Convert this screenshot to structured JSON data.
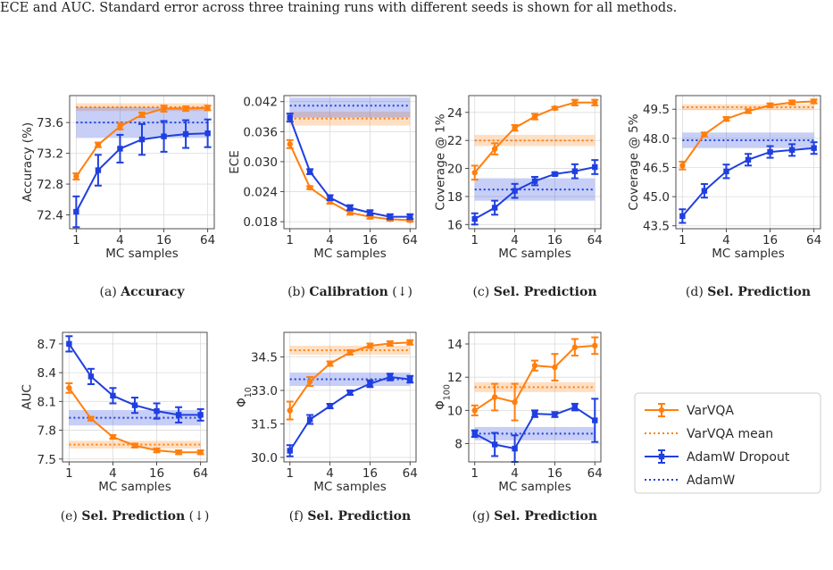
{
  "intro_text": "ECE and AUC. Standard error across three training runs with different seeds is shown for all methods.",
  "colors": {
    "varvqa": "#ff7f0e",
    "adamw": "#1f3fe0"
  },
  "legend": {
    "entries": [
      {
        "label": "VarVQA",
        "style": "errorbar",
        "color": "#ff7f0e",
        "marker": "circle"
      },
      {
        "label": "VarVQA mean",
        "style": "dotted",
        "color": "#ff7f0e"
      },
      {
        "label": "AdamW Dropout",
        "style": "errorbar",
        "color": "#1f3fe0",
        "marker": "square"
      },
      {
        "label": "AdamW",
        "style": "dotted",
        "color": "#1f3fe0"
      }
    ]
  },
  "chart_data": [
    {
      "type": "line",
      "x_scale": "log2",
      "caption": {
        "prefix": "(a)",
        "bold": "Accuracy",
        "suffix": ""
      },
      "xlabel": "MC samples",
      "ylabel": "Accuracy (%)",
      "ylabel_sub": "",
      "xticks": [
        1,
        4,
        16,
        64
      ],
      "xtick_labels": [
        "1",
        "4",
        "16",
        "64"
      ],
      "yticks": [
        72.4,
        72.8,
        73.2,
        73.6
      ],
      "ytick_labels": [
        "72.4",
        "72.8",
        "73.2",
        "73.6"
      ],
      "ylim": [
        72.22,
        73.95
      ],
      "x": [
        1,
        2,
        4,
        8,
        16,
        32,
        64
      ],
      "series": [
        {
          "name": "VarVQA",
          "values": [
            72.9,
            73.31,
            73.55,
            73.7,
            73.78,
            73.78,
            73.79
          ],
          "errors": [
            0.04,
            0.03,
            0.04,
            0.03,
            0.04,
            0.03,
            0.03
          ]
        },
        {
          "name": "AdamW Dropout",
          "values": [
            72.44,
            72.98,
            73.26,
            73.38,
            73.42,
            73.45,
            73.46
          ],
          "errors": [
            0.2,
            0.2,
            0.18,
            0.2,
            0.2,
            0.18,
            0.18
          ]
        }
      ],
      "means": [
        {
          "name": "VarVQA mean",
          "value": 73.8,
          "band": [
            73.75,
            73.85
          ]
        },
        {
          "name": "AdamW",
          "value": 73.6,
          "band": [
            73.4,
            73.8
          ]
        }
      ]
    },
    {
      "type": "line",
      "x_scale": "log2",
      "caption": {
        "prefix": "(b)",
        "bold": "Calibration",
        "suffix": " (↓)"
      },
      "xlabel": "MC samples",
      "ylabel": "ECE",
      "ylabel_sub": "",
      "xticks": [
        1,
        4,
        16,
        64
      ],
      "xtick_labels": [
        "1",
        "4",
        "16",
        "64"
      ],
      "yticks": [
        0.018,
        0.024,
        0.03,
        0.036,
        0.042
      ],
      "ytick_labels": [
        "0.018",
        "0.024",
        "0.030",
        "0.036",
        "0.042"
      ],
      "ylim": [
        0.0166,
        0.0432
      ],
      "x": [
        1,
        2,
        4,
        8,
        16,
        32,
        64
      ],
      "series": [
        {
          "name": "VarVQA",
          "values": [
            0.0335,
            0.0248,
            0.022,
            0.0198,
            0.019,
            0.0185,
            0.0183
          ],
          "errors": [
            0.0008,
            0.0003,
            0.0004,
            0.0004,
            0.0004,
            0.0003,
            0.0003
          ]
        },
        {
          "name": "AdamW Dropout",
          "values": [
            0.0388,
            0.028,
            0.0228,
            0.0208,
            0.0198,
            0.019,
            0.019
          ],
          "errors": [
            0.0008,
            0.0005,
            0.0005,
            0.0005,
            0.0005,
            0.0005,
            0.0005
          ]
        }
      ],
      "means": [
        {
          "name": "VarVQA mean",
          "value": 0.0386,
          "band": [
            0.0372,
            0.04
          ]
        },
        {
          "name": "AdamW",
          "value": 0.0412,
          "band": [
            0.0388,
            0.0428
          ]
        }
      ]
    },
    {
      "type": "line",
      "x_scale": "log2",
      "caption": {
        "prefix": "(c)",
        "bold": "Sel. Prediction",
        "suffix": ""
      },
      "xlabel": "MC samples",
      "ylabel": "Coverage @ 1%",
      "ylabel_sub": "",
      "xticks": [
        1,
        4,
        16,
        64
      ],
      "xtick_labels": [
        "1",
        "4",
        "16",
        "64"
      ],
      "yticks": [
        16,
        18,
        20,
        22,
        24
      ],
      "ytick_labels": [
        "16",
        "18",
        "20",
        "22",
        "24"
      ],
      "ylim": [
        15.7,
        25.2
      ],
      "x": [
        1,
        2,
        4,
        8,
        16,
        32,
        64
      ],
      "series": [
        {
          "name": "VarVQA",
          "values": [
            19.7,
            21.4,
            22.9,
            23.7,
            24.3,
            24.7,
            24.7
          ],
          "errors": [
            0.5,
            0.4,
            0.2,
            0.2,
            0.1,
            0.2,
            0.2
          ]
        },
        {
          "name": "AdamW Dropout",
          "values": [
            16.4,
            17.2,
            18.4,
            19.1,
            19.6,
            19.8,
            20.1
          ],
          "errors": [
            0.4,
            0.5,
            0.5,
            0.3,
            0.1,
            0.5,
            0.5
          ]
        }
      ],
      "means": [
        {
          "name": "VarVQA mean",
          "value": 22.0,
          "band": [
            21.6,
            22.4
          ]
        },
        {
          "name": "AdamW",
          "value": 18.5,
          "band": [
            17.7,
            19.3
          ]
        }
      ]
    },
    {
      "type": "line",
      "x_scale": "log2",
      "caption": {
        "prefix": "(d)",
        "bold": "Sel. Prediction",
        "suffix": ""
      },
      "xlabel": "MC samples",
      "ylabel": "Coverage @ 5%",
      "ylabel_sub": "",
      "xticks": [
        1,
        4,
        16,
        64
      ],
      "xtick_labels": [
        "1",
        "4",
        "16",
        "64"
      ],
      "yticks": [
        43.5,
        45,
        46.5,
        48,
        49.5
      ],
      "ytick_labels": [
        "43.5",
        "45.0",
        "46.5",
        "48.0",
        "49.5"
      ],
      "ylim": [
        43.35,
        50.2
      ],
      "x": [
        1,
        2,
        4,
        8,
        16,
        32,
        64
      ],
      "series": [
        {
          "name": "VarVQA",
          "values": [
            46.6,
            48.2,
            49.0,
            49.4,
            49.7,
            49.85,
            49.9
          ],
          "errors": [
            0.2,
            0.1,
            0.1,
            0.1,
            0.1,
            0.1,
            0.1
          ]
        },
        {
          "name": "AdamW Dropout",
          "values": [
            44.0,
            45.3,
            46.3,
            46.9,
            47.3,
            47.4,
            47.5
          ],
          "errors": [
            0.35,
            0.35,
            0.35,
            0.3,
            0.3,
            0.3,
            0.3
          ]
        }
      ],
      "means": [
        {
          "name": "VarVQA mean",
          "value": 49.6,
          "band": [
            49.45,
            49.75
          ]
        },
        {
          "name": "AdamW",
          "value": 47.9,
          "band": [
            47.5,
            48.3
          ]
        }
      ]
    },
    {
      "type": "line",
      "x_scale": "log2",
      "caption": {
        "prefix": "(e)",
        "bold": "Sel. Prediction",
        "suffix": " (↓)"
      },
      "xlabel": "MC samples",
      "ylabel": "AUC",
      "ylabel_sub": "",
      "xticks": [
        1,
        4,
        16,
        64
      ],
      "xtick_labels": [
        "1",
        "4",
        "16",
        "64"
      ],
      "yticks": [
        7.5,
        7.8,
        8.1,
        8.4,
        8.7
      ],
      "ytick_labels": [
        "7.5",
        "7.8",
        "8.1",
        "8.4",
        "8.7"
      ],
      "ylim": [
        7.47,
        8.82
      ],
      "x": [
        1,
        2,
        4,
        8,
        16,
        32,
        64
      ],
      "series": [
        {
          "name": "VarVQA",
          "values": [
            8.24,
            7.92,
            7.73,
            7.64,
            7.59,
            7.57,
            7.57
          ],
          "errors": [
            0.05,
            0.02,
            0.02,
            0.02,
            0.02,
            0.02,
            0.02
          ]
        },
        {
          "name": "AdamW Dropout",
          "values": [
            8.7,
            8.36,
            8.16,
            8.06,
            8.0,
            7.96,
            7.96
          ],
          "errors": [
            0.08,
            0.08,
            0.08,
            0.08,
            0.08,
            0.08,
            0.06
          ]
        }
      ],
      "means": [
        {
          "name": "VarVQA mean",
          "value": 7.65,
          "band": [
            7.61,
            7.69
          ]
        },
        {
          "name": "AdamW",
          "value": 7.93,
          "band": [
            7.85,
            8.01
          ]
        }
      ]
    },
    {
      "type": "line",
      "x_scale": "log2",
      "caption": {
        "prefix": "(f)",
        "bold": "Sel. Prediction",
        "suffix": ""
      },
      "xlabel": "MC samples",
      "ylabel": "Φ",
      "ylabel_sub": "10",
      "xticks": [
        1,
        4,
        16,
        64
      ],
      "xtick_labels": [
        "1",
        "4",
        "16",
        "64"
      ],
      "yticks": [
        30,
        31.5,
        33,
        34.5
      ],
      "ytick_labels": [
        "30.0",
        "31.5",
        "33.0",
        "34.5"
      ],
      "ylim": [
        29.8,
        35.6
      ],
      "x": [
        1,
        2,
        4,
        8,
        16,
        32,
        64
      ],
      "series": [
        {
          "name": "VarVQA",
          "values": [
            32.1,
            33.4,
            34.2,
            34.7,
            35.0,
            35.1,
            35.15
          ],
          "errors": [
            0.4,
            0.2,
            0.1,
            0.1,
            0.1,
            0.1,
            0.1
          ]
        },
        {
          "name": "AdamW Dropout",
          "values": [
            30.3,
            31.7,
            32.3,
            32.9,
            33.3,
            33.6,
            33.5
          ],
          "errors": [
            0.25,
            0.2,
            0.1,
            0.1,
            0.15,
            0.15,
            0.15
          ]
        }
      ],
      "means": [
        {
          "name": "VarVQA mean",
          "value": 34.8,
          "band": [
            34.6,
            35.0
          ]
        },
        {
          "name": "AdamW",
          "value": 33.5,
          "band": [
            33.2,
            33.8
          ]
        }
      ]
    },
    {
      "type": "line",
      "x_scale": "log2",
      "caption": {
        "prefix": "(g)",
        "bold": "Sel. Prediction",
        "suffix": ""
      },
      "xlabel": "MC samples",
      "ylabel": "Φ",
      "ylabel_sub": "100",
      "xticks": [
        1,
        4,
        16,
        64
      ],
      "xtick_labels": [
        "1",
        "4",
        "16",
        "64"
      ],
      "yticks": [
        8,
        10,
        12,
        14
      ],
      "ytick_labels": [
        "8",
        "10",
        "12",
        "14"
      ],
      "ylim": [
        6.9,
        14.7
      ],
      "x": [
        1,
        2,
        4,
        8,
        16,
        32,
        64
      ],
      "series": [
        {
          "name": "VarVQA",
          "values": [
            10.0,
            10.8,
            10.5,
            12.7,
            12.6,
            13.8,
            13.9
          ],
          "errors": [
            0.3,
            0.8,
            1.1,
            0.3,
            0.8,
            0.5,
            0.5
          ]
        },
        {
          "name": "AdamW Dropout",
          "values": [
            8.6,
            7.95,
            7.7,
            9.8,
            9.75,
            10.2,
            9.4
          ],
          "errors": [
            0.2,
            0.7,
            0.8,
            0.2,
            0.15,
            0.2,
            1.3
          ]
        }
      ],
      "means": [
        {
          "name": "VarVQA mean",
          "value": 11.4,
          "band": [
            11.1,
            11.7
          ]
        },
        {
          "name": "AdamW",
          "value": 8.6,
          "band": [
            8.2,
            9.0
          ]
        }
      ]
    }
  ]
}
